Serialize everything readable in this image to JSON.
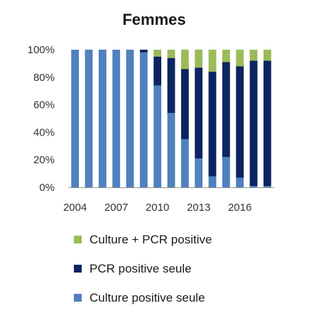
{
  "chart_data": {
    "type": "bar",
    "stacked": true,
    "normalized": true,
    "title": "Femmes",
    "xlabel": "",
    "ylabel": "",
    "ylim": [
      0,
      100
    ],
    "y_ticks": [
      "0%",
      "20%",
      "40%",
      "60%",
      "80%",
      "100%"
    ],
    "x_tick_labels": [
      "2004",
      "2007",
      "2010",
      "2013",
      "2016"
    ],
    "categories": [
      "2004",
      "2005",
      "2006",
      "2007",
      "2008",
      "2009",
      "2010",
      "2011",
      "2012",
      "2013",
      "2014",
      "2015",
      "2016",
      "2017",
      "2018"
    ],
    "series": [
      {
        "name": "Culture positive seule",
        "color": "#4f81bd",
        "values": [
          100,
          100,
          100,
          100,
          100,
          98,
          74,
          54,
          35,
          21,
          8,
          22,
          7,
          1,
          1
        ]
      },
      {
        "name": "PCR positive seule",
        "color": "#0c2461",
        "values": [
          0,
          0,
          0,
          0,
          0,
          2,
          21,
          40,
          51,
          66,
          76,
          69,
          81,
          91,
          91
        ]
      },
      {
        "name": "Culture + PCR positive",
        "color": "#9bbb59",
        "values": [
          0,
          0,
          0,
          0,
          0,
          0,
          5,
          6,
          14,
          13,
          16,
          9,
          12,
          8,
          8
        ]
      }
    ],
    "legend_order": [
      "Culture + PCR positive",
      "PCR positive seule",
      "Culture positive seule"
    ],
    "legend_position": "bottom",
    "grid": false
  }
}
